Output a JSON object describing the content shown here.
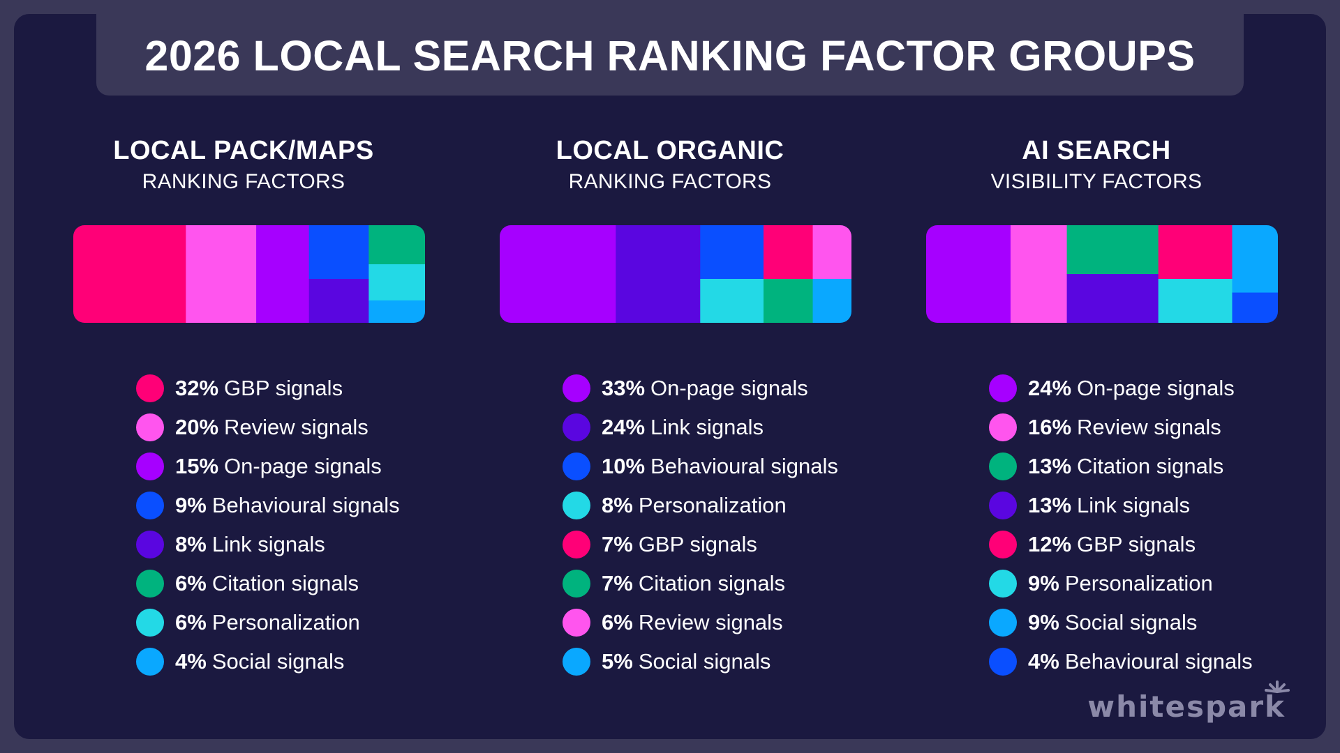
{
  "title": "2026 LOCAL SEARCH RANKING FACTOR GROUPS",
  "brand": "whitespark",
  "colors": {
    "gbp": "#ff0077",
    "review": "#ff55ee",
    "onpage": "#a600ff",
    "behavioural": "#0a4fff",
    "link": "#5a06e0",
    "citation": "#00b37e",
    "personalization": "#23d9e6",
    "social": "#0aa8ff"
  },
  "chart_data": [
    {
      "type": "treemap",
      "title": "LOCAL PACK/MAPS",
      "subtitle": "RANKING FACTORS",
      "items": [
        {
          "pct": "32%",
          "label": "GBP signals",
          "value": 32,
          "color": "#ff0077"
        },
        {
          "pct": "20%",
          "label": "Review signals",
          "value": 20,
          "color": "#ff55ee"
        },
        {
          "pct": "15%",
          "label": "On-page signals",
          "value": 15,
          "color": "#a600ff"
        },
        {
          "pct": "9%",
          "label": "Behavioural signals",
          "value": 9,
          "color": "#0a4fff"
        },
        {
          "pct": "8%",
          "label": "Link signals",
          "value": 8,
          "color": "#5a06e0"
        },
        {
          "pct": "6%",
          "label": "Citation signals",
          "value": 6,
          "color": "#00b37e"
        },
        {
          "pct": "6%",
          "label": "Personalization",
          "value": 6,
          "color": "#23d9e6"
        },
        {
          "pct": "4%",
          "label": "Social signals",
          "value": 4,
          "color": "#0aa8ff"
        }
      ]
    },
    {
      "type": "treemap",
      "title": "LOCAL ORGANIC",
      "subtitle": "RANKING FACTORS",
      "items": [
        {
          "pct": "33%",
          "label": "On-page signals",
          "value": 33,
          "color": "#a600ff"
        },
        {
          "pct": "24%",
          "label": "Link signals",
          "value": 24,
          "color": "#5a06e0"
        },
        {
          "pct": "10%",
          "label": "Behavioural signals",
          "value": 10,
          "color": "#0a4fff"
        },
        {
          "pct": "8%",
          "label": "Personalization",
          "value": 8,
          "color": "#23d9e6"
        },
        {
          "pct": "7%",
          "label": "GBP signals",
          "value": 7,
          "color": "#ff0077"
        },
        {
          "pct": "7%",
          "label": "Citation signals",
          "value": 7,
          "color": "#00b37e"
        },
        {
          "pct": "6%",
          "label": "Review signals",
          "value": 6,
          "color": "#ff55ee"
        },
        {
          "pct": "5%",
          "label": "Social signals",
          "value": 5,
          "color": "#0aa8ff"
        }
      ]
    },
    {
      "type": "treemap",
      "title": "AI SEARCH",
      "subtitle": "VISIBILITY FACTORS",
      "items": [
        {
          "pct": "24%",
          "label": "On-page signals",
          "value": 24,
          "color": "#a600ff"
        },
        {
          "pct": "16%",
          "label": "Review signals",
          "value": 16,
          "color": "#ff55ee"
        },
        {
          "pct": "13%",
          "label": "Citation signals",
          "value": 13,
          "color": "#00b37e"
        },
        {
          "pct": "13%",
          "label": "Link signals",
          "value": 13,
          "color": "#5a06e0"
        },
        {
          "pct": "12%",
          "label": "GBP signals",
          "value": 12,
          "color": "#ff0077"
        },
        {
          "pct": "9%",
          "label": "Personalization",
          "value": 9,
          "color": "#23d9e6"
        },
        {
          "pct": "9%",
          "label": "Social signals",
          "value": 9,
          "color": "#0aa8ff"
        },
        {
          "pct": "4%",
          "label": "Behavioural signals",
          "value": 4,
          "color": "#0a4fff"
        }
      ]
    }
  ]
}
